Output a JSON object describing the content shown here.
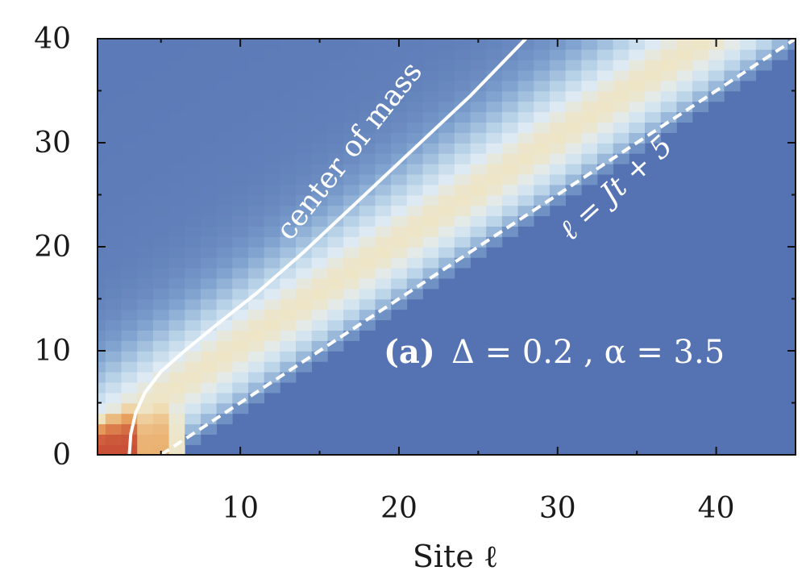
{
  "chart_data": {
    "type": "heatmap",
    "xlabel": "Site ℓ",
    "ylabel": "",
    "xlim": [
      1,
      45
    ],
    "ylim": [
      0,
      40
    ],
    "x_ticks": [
      10,
      20,
      30,
      40
    ],
    "y_ticks": [
      0,
      10,
      20,
      30,
      40
    ],
    "x_tick_labels": [
      "10",
      "20",
      "30",
      "40"
    ],
    "y_tick_labels": [
      "0",
      "10",
      "20",
      "30",
      "40"
    ],
    "grid": false,
    "colormap": "RdYlBu_r",
    "colors": {
      "background": "#5572b2",
      "hot": "#c23a2c",
      "warm": "#e9a660",
      "light": "#f0e3bc",
      "cool": "#b9d3e8",
      "lines": "#ffffff"
    },
    "annotations": {
      "panel_label": "(a)",
      "params": "Δ = 0.2 , α = 3.5",
      "center_of_mass": "center of mass",
      "light_cone": "ℓ = Jt + 5"
    },
    "series": [
      {
        "name": "center of mass",
        "style": "solid",
        "x": [
          3.0,
          3.1,
          3.4,
          4.0,
          5.0,
          6.5,
          8.5,
          11.0,
          14.0,
          17.5,
          21.0,
          24.5,
          28.0
        ],
        "y": [
          0,
          2,
          4,
          6,
          8,
          10,
          12.5,
          15.5,
          19.5,
          24.5,
          29.5,
          34.5,
          40
        ]
      },
      {
        "name": "ℓ = Jt + 5",
        "style": "dashed",
        "x": [
          5,
          45
        ],
        "y": [
          0,
          40
        ]
      }
    ]
  }
}
